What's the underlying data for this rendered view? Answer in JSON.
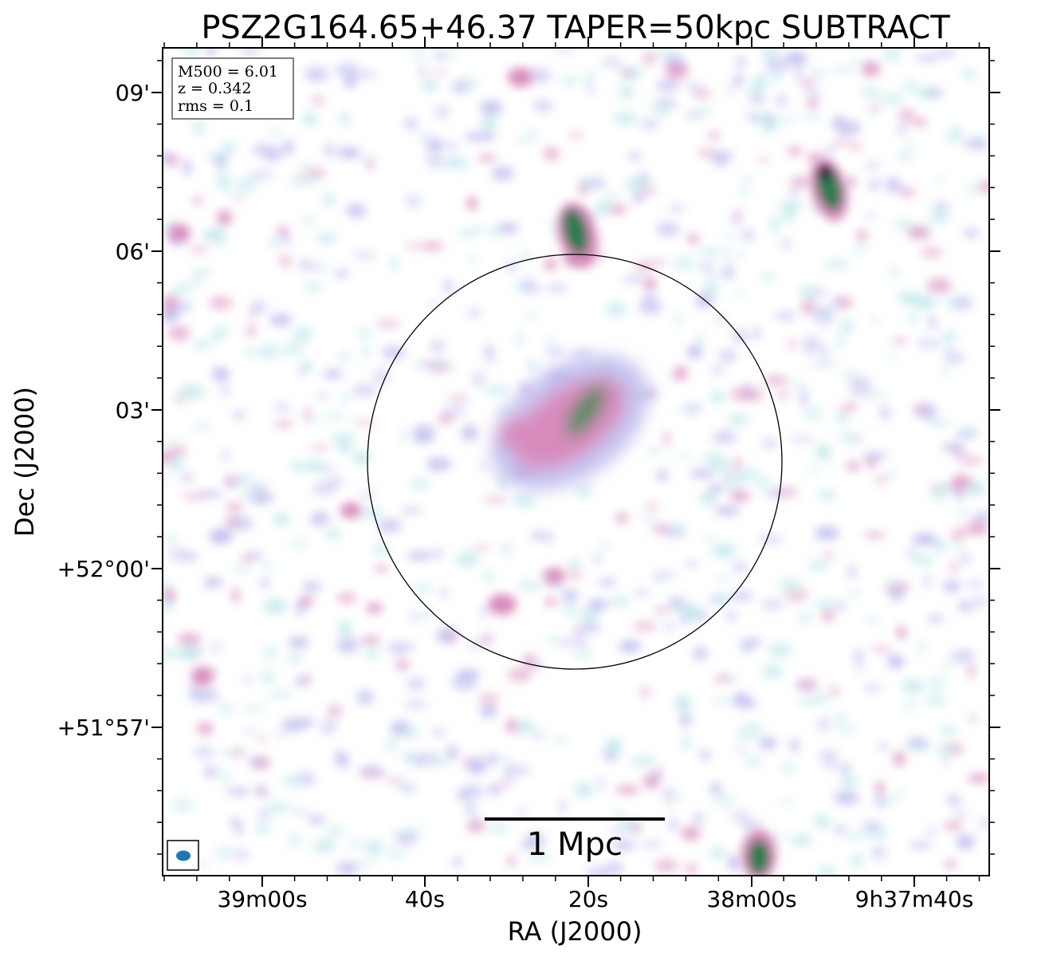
{
  "title": "PSZ2G164.65+46.37 TAPER=50kpc SUBTRACT",
  "info_box": {
    "line1": "M500 = 6.01",
    "line2": "z = 0.342",
    "line3": "rms = 0.1"
  },
  "axes": {
    "xlabel": "RA (J2000)",
    "ylabel": "Dec (J2000)",
    "x_ticks": [
      "39m00s",
      "40s",
      "20s",
      "38m00s",
      "9h37m40s"
    ],
    "y_ticks": [
      "09'",
      "06'",
      "03'",
      "+52°00'",
      "+51°57'"
    ]
  },
  "scalebar": {
    "label": "1 Mpc"
  },
  "colors": {
    "faint": "#bfe6ea",
    "low": "#b9b6ec",
    "mid": "#d88bbd",
    "high": "#2f7a4f",
    "peak": "#101030",
    "beam": "#1f77b4"
  },
  "icons": {
    "beam": "beam-ellipse-icon"
  }
}
